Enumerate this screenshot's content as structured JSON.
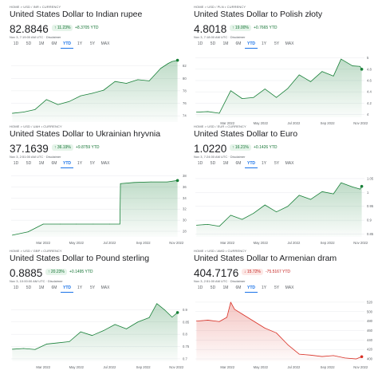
{
  "colors": {
    "up": "#188038",
    "down": "#d93025",
    "grid": "#e8eaed"
  },
  "panels": [
    {
      "breadcrumb": "HOME > USD / INR • CURRENCY",
      "title": "United States Dollar to Indian rupee",
      "price": "82.8846",
      "pct_change": "↑ 11.23%",
      "abs_change": "+8.3705 YTD",
      "direction": "up",
      "timestamp": "Nov 3, 7:19:00 AM UTC · Disclaimer",
      "ranges": [
        "1D",
        "5D",
        "1M",
        "6M",
        "YTD",
        "1Y",
        "5Y",
        "MAX"
      ],
      "active_range": "YTD",
      "chart_data": {
        "type": "area",
        "x": [
          "2022-01-03",
          "2022-01-24",
          "2022-02-14",
          "2022-03-07",
          "2022-03-28",
          "2022-04-18",
          "2022-05-09",
          "2022-05-30",
          "2022-06-20",
          "2022-07-11",
          "2022-08-01",
          "2022-08-22",
          "2022-09-12",
          "2022-10-03",
          "2022-10-17",
          "2022-10-24",
          "2022-11-03"
        ],
        "y": [
          74.4,
          74.6,
          75.0,
          76.6,
          75.8,
          76.3,
          77.2,
          77.6,
          78.1,
          79.5,
          79.2,
          79.8,
          79.6,
          81.6,
          82.4,
          82.7,
          82.9
        ],
        "yticks": [
          74,
          76,
          78,
          80,
          82
        ],
        "ylim": [
          73,
          84
        ],
        "xticks": [],
        "xlabel": "",
        "ylabel": ""
      }
    },
    {
      "breadcrumb": "HOME > USD / PLN • CURRENCY",
      "title": "United States Dollar to Polish złoty",
      "price": "4.8018",
      "pct_change": "↑ 19.00%",
      "abs_change": "+0.7665 YTD",
      "direction": "up",
      "timestamp": "Nov 3, 7:18:00 AM UTC · Disclaimer",
      "ranges": [
        "1D",
        "5D",
        "1M",
        "6M",
        "YTD",
        "1Y",
        "5Y",
        "MAX"
      ],
      "active_range": "YTD",
      "chart_data": {
        "type": "area",
        "x": [
          "2022-01-03",
          "2022-01-24",
          "2022-02-14",
          "2022-03-07",
          "2022-03-28",
          "2022-04-18",
          "2022-05-09",
          "2022-05-30",
          "2022-06-20",
          "2022-07-11",
          "2022-08-01",
          "2022-08-22",
          "2022-09-12",
          "2022-09-26",
          "2022-10-17",
          "2022-10-31",
          "2022-11-03"
        ],
        "y": [
          4.04,
          4.05,
          4.02,
          4.42,
          4.28,
          4.3,
          4.45,
          4.3,
          4.46,
          4.7,
          4.58,
          4.76,
          4.68,
          4.98,
          4.86,
          4.85,
          4.8
        ],
        "yticks": [
          4.0,
          4.2,
          4.4,
          4.6,
          4.8,
          5.0
        ],
        "ylim": [
          3.95,
          5.08
        ],
        "xticks": [
          "Mar 2022",
          "May 2022",
          "Jul 2022",
          "Sep 2022",
          "Nov 2022"
        ],
        "xlabel": "",
        "ylabel": ""
      }
    },
    {
      "breadcrumb": "HOME > USD / UAH • CURRENCY",
      "title": "United States Dollar to Ukrainian hryvnia",
      "price": "37.1639",
      "pct_change": "↑ 36.19%",
      "abs_change": "+9.8759 YTD",
      "direction": "up",
      "timestamp": "Nov 3, 2:51:00 AM UTC · Disclaimer",
      "ranges": [
        "1D",
        "5D",
        "1M",
        "6M",
        "YTD",
        "1Y",
        "5Y",
        "MAX"
      ],
      "active_range": "YTD",
      "chart_data": {
        "type": "area",
        "x": [
          "2022-01-03",
          "2022-02-01",
          "2022-03-01",
          "2022-04-01",
          "2022-05-01",
          "2022-06-01",
          "2022-07-01",
          "2022-07-20",
          "2022-07-21",
          "2022-08-15",
          "2022-09-15",
          "2022-10-15",
          "2022-11-03"
        ],
        "y": [
          27.3,
          27.9,
          29.3,
          29.3,
          29.3,
          29.3,
          29.3,
          29.3,
          36.6,
          36.8,
          36.9,
          36.9,
          37.16
        ],
        "yticks": [
          28,
          30,
          32,
          34,
          36,
          38
        ],
        "ylim": [
          27,
          38.5
        ],
        "xticks": [
          "Mar 2022",
          "May 2022",
          "Jul 2022",
          "Sep 2022",
          "Nov 2022"
        ],
        "xlabel": "",
        "ylabel": ""
      }
    },
    {
      "breadcrumb": "HOME > USD / EUR • CURRENCY",
      "title": "United States Dollar to Euro",
      "price": "1.0220",
      "pct_change": "↑ 16.21%",
      "abs_change": "+0.1426 YTD",
      "direction": "up",
      "timestamp": "Nov 3, 7:24:00 AM UTC · Disclaimer",
      "ranges": [
        "1D",
        "5D",
        "1M",
        "6M",
        "YTD",
        "1Y",
        "5Y",
        "MAX"
      ],
      "active_range": "YTD",
      "chart_data": {
        "type": "area",
        "x": [
          "2022-01-03",
          "2022-01-24",
          "2022-02-14",
          "2022-03-07",
          "2022-03-28",
          "2022-04-18",
          "2022-05-09",
          "2022-05-30",
          "2022-06-20",
          "2022-07-11",
          "2022-08-01",
          "2022-08-22",
          "2022-09-12",
          "2022-09-26",
          "2022-10-17",
          "2022-10-31",
          "2022-11-03"
        ],
        "y": [
          0.882,
          0.885,
          0.878,
          0.918,
          0.903,
          0.925,
          0.955,
          0.93,
          0.95,
          0.99,
          0.975,
          1.003,
          0.995,
          1.035,
          1.02,
          1.012,
          1.022
        ],
        "yticks": [
          0.85,
          0.9,
          0.95,
          1.0,
          1.05
        ],
        "ylim": [
          0.84,
          1.07
        ],
        "xticks": [
          "Mar 2022",
          "May 2022",
          "Jul 2022",
          "Sep 2022",
          "Nov 2022"
        ],
        "xlabel": "",
        "ylabel": ""
      }
    },
    {
      "breadcrumb": "HOME > USD / GBP • CURRENCY",
      "title": "United States Dollar to Pound sterling",
      "price": "0.8885",
      "pct_change": "↑ 20.23%",
      "abs_change": "+0.1495 YTD",
      "direction": "up",
      "timestamp": "Nov 3, 10:00:00 AM UTC · Disclaimer",
      "ranges": [
        "1D",
        "5D",
        "1M",
        "6M",
        "YTD",
        "1Y",
        "5Y",
        "MAX"
      ],
      "active_range": "YTD",
      "chart_data": {
        "type": "area",
        "x": [
          "2022-01-03",
          "2022-01-24",
          "2022-02-14",
          "2022-03-07",
          "2022-03-28",
          "2022-04-18",
          "2022-05-09",
          "2022-05-30",
          "2022-06-20",
          "2022-07-11",
          "2022-08-01",
          "2022-08-22",
          "2022-09-12",
          "2022-09-26",
          "2022-10-10",
          "2022-10-24",
          "2022-11-03"
        ],
        "y": [
          0.739,
          0.742,
          0.738,
          0.76,
          0.765,
          0.77,
          0.81,
          0.795,
          0.815,
          0.84,
          0.822,
          0.85,
          0.868,
          0.925,
          0.9,
          0.87,
          0.8885
        ],
        "yticks": [
          0.7,
          0.75,
          0.8,
          0.85,
          0.9
        ],
        "ylim": [
          0.69,
          0.95
        ],
        "xticks": [
          "Mar 2022",
          "May 2022",
          "Jul 2022",
          "Sep 2022",
          "Nov 2022"
        ],
        "xlabel": "",
        "ylabel": ""
      }
    },
    {
      "breadcrumb": "HOME > USD / AMD • CURRENCY",
      "title": "United States Dollar to Armenian dram",
      "price": "404.7176",
      "pct_change": "↓ 15.72%",
      "abs_change": "-75.5167 YTD",
      "direction": "down",
      "timestamp": "Nov 3, 2:51:00 AM UTC · Disclaimer",
      "ranges": [
        "1D",
        "5D",
        "1M",
        "6M",
        "YTD",
        "1Y",
        "5Y",
        "MAX"
      ],
      "active_range": "YTD",
      "chart_data": {
        "type": "area",
        "x": [
          "2022-01-03",
          "2022-01-24",
          "2022-02-14",
          "2022-02-28",
          "2022-03-07",
          "2022-03-14",
          "2022-03-28",
          "2022-04-18",
          "2022-05-09",
          "2022-05-30",
          "2022-06-20",
          "2022-07-11",
          "2022-08-01",
          "2022-08-22",
          "2022-09-12",
          "2022-10-03",
          "2022-10-24",
          "2022-11-03"
        ],
        "y": [
          480,
          482,
          479,
          488,
          520,
          505,
          495,
          480,
          465,
          455,
          430,
          410,
          408,
          405,
          407,
          402,
          400,
          404.7
        ],
        "yticks": [
          400,
          420,
          440,
          460,
          480,
          500,
          520
        ],
        "ylim": [
          395,
          530
        ],
        "xticks": [
          "Mar 2022",
          "May 2022",
          "Jul 2022",
          "Sep 2022",
          "Nov 2022"
        ],
        "xlabel": "",
        "ylabel": ""
      }
    }
  ]
}
